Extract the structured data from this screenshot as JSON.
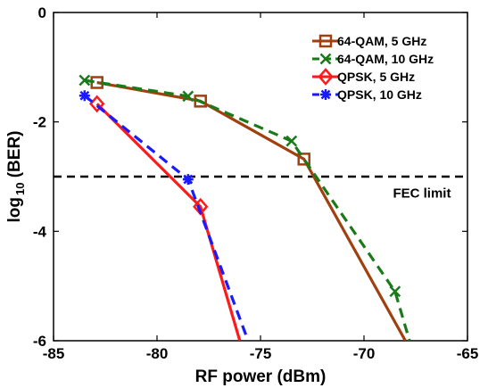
{
  "chart_data": {
    "type": "line",
    "title": "",
    "xlabel": "RF power (dBm)",
    "ylabel_main": "log",
    "ylabel_sub": "10",
    "ylabel_rest": " (BER)",
    "xlim": [
      -85,
      -65
    ],
    "ylim": [
      -6,
      0
    ],
    "x_ticks": [
      -85,
      -80,
      -75,
      -70,
      -65
    ],
    "y_ticks": [
      0,
      -2,
      -4,
      -6
    ],
    "x_tick_labels": [
      "-85",
      "-80",
      "-75",
      "-70",
      "-65"
    ],
    "y_tick_labels": [
      "0",
      "-2",
      "-4",
      "-6"
    ],
    "grid": false,
    "legend_position": "top-right",
    "series": [
      {
        "name": "64-QAM, 5 GHz",
        "color": "#a0400f",
        "dash": "solid",
        "marker": "square",
        "x": [
          -82.9,
          -77.9,
          -72.9,
          -68.0
        ],
        "y": [
          -1.28,
          -1.62,
          -2.68,
          -6.0
        ]
      },
      {
        "name": "64-QAM, 10 GHz",
        "color": "#1a7a1a",
        "dash": "dashed",
        "marker": "x",
        "x": [
          -83.5,
          -78.5,
          -73.5,
          -68.5,
          -67.8
        ],
        "y": [
          -1.24,
          -1.53,
          -2.35,
          -5.1,
          -6.0
        ]
      },
      {
        "name": "QPSK, 5 GHz",
        "color": "#ff1a1a",
        "dash": "solid",
        "marker": "diamond",
        "x": [
          -82.9,
          -77.9,
          -76.0
        ],
        "y": [
          -1.67,
          -3.55,
          -6.0
        ]
      },
      {
        "name": "QPSK, 10 GHz",
        "color": "#1a1aff",
        "dash": "dashed",
        "marker": "asterisk",
        "x": [
          -83.5,
          -78.5,
          -75.6
        ],
        "y": [
          -1.52,
          -3.05,
          -6.0
        ]
      }
    ],
    "reference_line": {
      "y": -3,
      "color": "#000000",
      "dash": "dashed"
    },
    "annotations": [
      {
        "text": "FEC limit",
        "x": -68.6,
        "y": -3.3
      }
    ]
  }
}
